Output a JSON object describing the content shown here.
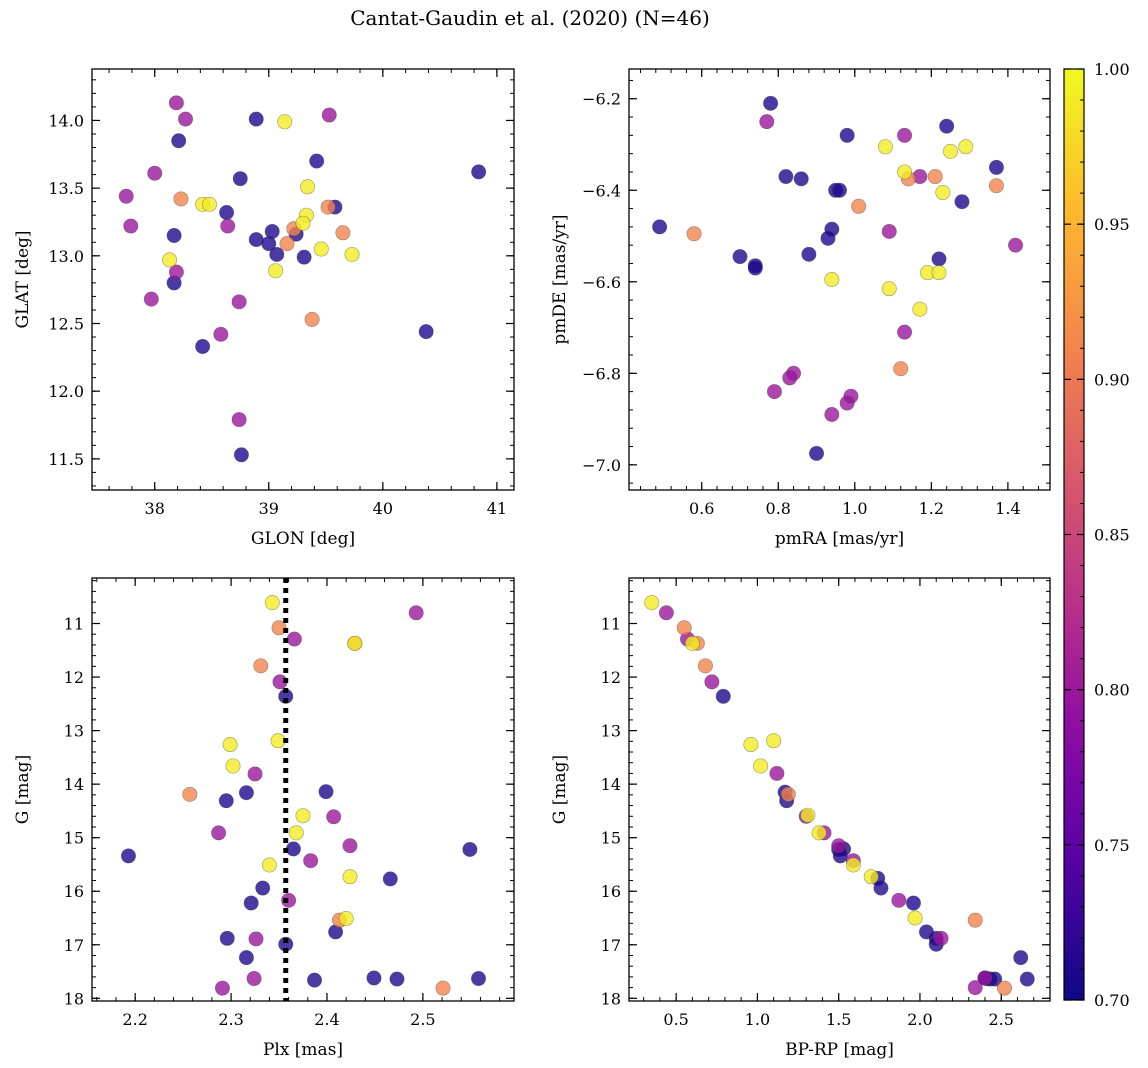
{
  "figure": {
    "title": "Cantat-Gaudin et al. (2020) (N=46)"
  },
  "colorbar": {
    "colormap": "plasma",
    "min": 0.7,
    "max": 1.0,
    "ticks": [
      0.7,
      0.75,
      0.8,
      0.85,
      0.9,
      0.95,
      1.0
    ],
    "tick_labels": [
      "0.70",
      "0.75",
      "0.80",
      "0.85",
      "0.90",
      "0.95",
      "1.00"
    ]
  },
  "chart_data": [
    {
      "id": "glon-glat",
      "type": "scatter",
      "title": "",
      "xlabel": "GLON [deg]",
      "ylabel": "GLAT [deg]",
      "xlim": [
        37.45,
        41.15
      ],
      "ylim": [
        11.27,
        14.38
      ],
      "yinverted": false,
      "xticks": [
        38,
        39,
        40,
        41
      ],
      "yticks": [
        11.5,
        12.0,
        12.5,
        13.0,
        13.5,
        14.0
      ],
      "xtick_labels": [
        "38",
        "39",
        "40",
        "41"
      ],
      "ytick_labels": [
        "11.5",
        "12.0",
        "12.5",
        "13.0",
        "13.5",
        "14.0"
      ],
      "points": [
        {
          "x": 38.89,
          "y": 14.01,
          "c": 0.71
        },
        {
          "x": 38.21,
          "y": 13.85,
          "c": 0.71
        },
        {
          "x": 39.42,
          "y": 13.7,
          "c": 0.71
        },
        {
          "x": 40.84,
          "y": 13.62,
          "c": 0.71
        },
        {
          "x": 38.75,
          "y": 13.57,
          "c": 0.71
        },
        {
          "x": 39.58,
          "y": 13.36,
          "c": 0.71
        },
        {
          "x": 38.63,
          "y": 13.32,
          "c": 0.71
        },
        {
          "x": 39.24,
          "y": 13.16,
          "c": 0.71
        },
        {
          "x": 39.03,
          "y": 13.18,
          "c": 0.71
        },
        {
          "x": 38.17,
          "y": 13.15,
          "c": 0.71
        },
        {
          "x": 38.89,
          "y": 13.12,
          "c": 0.71
        },
        {
          "x": 39.0,
          "y": 13.09,
          "c": 0.71
        },
        {
          "x": 39.07,
          "y": 13.01,
          "c": 0.71
        },
        {
          "x": 39.31,
          "y": 12.99,
          "c": 0.71
        },
        {
          "x": 38.17,
          "y": 12.8,
          "c": 0.71
        },
        {
          "x": 40.38,
          "y": 12.44,
          "c": 0.71
        },
        {
          "x": 38.42,
          "y": 12.33,
          "c": 0.71
        },
        {
          "x": 38.76,
          "y": 11.53,
          "c": 0.71
        },
        {
          "x": 38.19,
          "y": 14.13,
          "c": 0.8
        },
        {
          "x": 38.27,
          "y": 14.01,
          "c": 0.8
        },
        {
          "x": 39.53,
          "y": 14.04,
          "c": 0.8
        },
        {
          "x": 38.0,
          "y": 13.61,
          "c": 0.8
        },
        {
          "x": 37.75,
          "y": 13.44,
          "c": 0.8
        },
        {
          "x": 37.79,
          "y": 13.22,
          "c": 0.8
        },
        {
          "x": 38.64,
          "y": 13.22,
          "c": 0.8
        },
        {
          "x": 38.19,
          "y": 12.88,
          "c": 0.8
        },
        {
          "x": 37.97,
          "y": 12.68,
          "c": 0.8
        },
        {
          "x": 38.74,
          "y": 12.66,
          "c": 0.8
        },
        {
          "x": 38.58,
          "y": 12.42,
          "c": 0.8
        },
        {
          "x": 38.74,
          "y": 11.79,
          "c": 0.8
        },
        {
          "x": 38.23,
          "y": 13.42,
          "c": 0.91
        },
        {
          "x": 39.52,
          "y": 13.36,
          "c": 0.91
        },
        {
          "x": 39.22,
          "y": 13.2,
          "c": 0.91
        },
        {
          "x": 39.65,
          "y": 13.17,
          "c": 0.91
        },
        {
          "x": 39.16,
          "y": 13.09,
          "c": 0.91
        },
        {
          "x": 39.38,
          "y": 12.53,
          "c": 0.91
        },
        {
          "x": 39.14,
          "y": 13.99,
          "c": 0.99
        },
        {
          "x": 39.34,
          "y": 13.51,
          "c": 0.99
        },
        {
          "x": 38.42,
          "y": 13.38,
          "c": 0.99
        },
        {
          "x": 38.48,
          "y": 13.38,
          "c": 0.99
        },
        {
          "x": 39.33,
          "y": 13.3,
          "c": 0.99
        },
        {
          "x": 39.3,
          "y": 13.24,
          "c": 0.99
        },
        {
          "x": 39.46,
          "y": 13.05,
          "c": 0.99
        },
        {
          "x": 39.73,
          "y": 13.01,
          "c": 0.99
        },
        {
          "x": 38.13,
          "y": 12.97,
          "c": 0.99
        },
        {
          "x": 39.06,
          "y": 12.89,
          "c": 0.99
        }
      ]
    },
    {
      "id": "pmra-pmde",
      "type": "scatter",
      "title": "",
      "xlabel": "pmRA [mas/yr]",
      "ylabel": "pmDE [mas/yr]",
      "xlim": [
        0.41,
        1.51
      ],
      "ylim": [
        -7.055,
        -6.135
      ],
      "yinverted": false,
      "xticks": [
        0.6,
        0.8,
        1.0,
        1.2,
        1.4
      ],
      "yticks": [
        -7.0,
        -6.8,
        -6.6,
        -6.4,
        -6.2
      ],
      "xtick_labels": [
        "0.6",
        "0.8",
        "1.0",
        "1.2",
        "1.4"
      ],
      "ytick_labels": [
        "−7.0",
        "−6.8",
        "−6.6",
        "−6.4",
        "−6.2"
      ],
      "points": [
        {
          "x": 0.78,
          "y": -6.21,
          "c": 0.71
        },
        {
          "x": 1.24,
          "y": -6.26,
          "c": 0.71
        },
        {
          "x": 0.98,
          "y": -6.28,
          "c": 0.71
        },
        {
          "x": 1.37,
          "y": -6.35,
          "c": 0.71
        },
        {
          "x": 0.82,
          "y": -6.37,
          "c": 0.71
        },
        {
          "x": 0.86,
          "y": -6.375,
          "c": 0.71
        },
        {
          "x": 0.95,
          "y": -6.4,
          "c": 0.71
        },
        {
          "x": 0.96,
          "y": -6.4,
          "c": 0.71
        },
        {
          "x": 1.28,
          "y": -6.425,
          "c": 0.71
        },
        {
          "x": 0.49,
          "y": -6.48,
          "c": 0.71
        },
        {
          "x": 0.94,
          "y": -6.485,
          "c": 0.71
        },
        {
          "x": 0.93,
          "y": -6.505,
          "c": 0.71
        },
        {
          "x": 0.88,
          "y": -6.54,
          "c": 0.71
        },
        {
          "x": 0.7,
          "y": -6.545,
          "c": 0.71
        },
        {
          "x": 1.22,
          "y": -6.55,
          "c": 0.71
        },
        {
          "x": 0.74,
          "y": -6.565,
          "c": 0.71
        },
        {
          "x": 0.74,
          "y": -6.57,
          "c": 0.71
        },
        {
          "x": 0.9,
          "y": -6.975,
          "c": 0.71
        },
        {
          "x": 0.77,
          "y": -6.25,
          "c": 0.8
        },
        {
          "x": 1.13,
          "y": -6.28,
          "c": 0.8
        },
        {
          "x": 1.17,
          "y": -6.37,
          "c": 0.8
        },
        {
          "x": 1.42,
          "y": -6.52,
          "c": 0.8
        },
        {
          "x": 1.09,
          "y": -6.49,
          "c": 0.8
        },
        {
          "x": 1.13,
          "y": -6.71,
          "c": 0.8
        },
        {
          "x": 0.84,
          "y": -6.8,
          "c": 0.8
        },
        {
          "x": 0.83,
          "y": -6.81,
          "c": 0.8
        },
        {
          "x": 0.79,
          "y": -6.84,
          "c": 0.8
        },
        {
          "x": 0.99,
          "y": -6.85,
          "c": 0.8
        },
        {
          "x": 0.98,
          "y": -6.865,
          "c": 0.8
        },
        {
          "x": 0.94,
          "y": -6.89,
          "c": 0.8
        },
        {
          "x": 1.21,
          "y": -6.37,
          "c": 0.91
        },
        {
          "x": 1.14,
          "y": -6.375,
          "c": 0.91
        },
        {
          "x": 1.37,
          "y": -6.39,
          "c": 0.91
        },
        {
          "x": 1.01,
          "y": -6.435,
          "c": 0.91
        },
        {
          "x": 0.58,
          "y": -6.495,
          "c": 0.91
        },
        {
          "x": 1.12,
          "y": -6.79,
          "c": 0.91
        },
        {
          "x": 1.08,
          "y": -6.305,
          "c": 0.99
        },
        {
          "x": 1.29,
          "y": -6.305,
          "c": 0.99
        },
        {
          "x": 1.25,
          "y": -6.315,
          "c": 0.99
        },
        {
          "x": 1.13,
          "y": -6.36,
          "c": 0.99
        },
        {
          "x": 1.23,
          "y": -6.405,
          "c": 0.99
        },
        {
          "x": 1.19,
          "y": -6.58,
          "c": 0.99
        },
        {
          "x": 1.22,
          "y": -6.58,
          "c": 0.99
        },
        {
          "x": 0.94,
          "y": -6.595,
          "c": 0.99
        },
        {
          "x": 1.09,
          "y": -6.615,
          "c": 0.99
        },
        {
          "x": 1.17,
          "y": -6.66,
          "c": 0.99
        }
      ]
    },
    {
      "id": "plx-g",
      "type": "scatter",
      "title": "",
      "xlabel": "Plx [mas]",
      "ylabel": "G [mag]",
      "xlim": [
        2.155,
        2.595
      ],
      "ylim": [
        10.15,
        18.05
      ],
      "yinverted": true,
      "xticks": [
        2.2,
        2.3,
        2.4,
        2.5
      ],
      "yticks": [
        11,
        12,
        13,
        14,
        15,
        16,
        17,
        18
      ],
      "xtick_labels": [
        "2.2",
        "2.3",
        "2.4",
        "2.5"
      ],
      "ytick_labels": [
        "11",
        "12",
        "13",
        "14",
        "15",
        "16",
        "17",
        "18"
      ],
      "vline": {
        "x": 2.357,
        "style": "dotted"
      },
      "points": [
        {
          "x": 2.357,
          "y": 12.36,
          "c": 0.71
        },
        {
          "x": 2.316,
          "y": 14.16,
          "c": 0.71
        },
        {
          "x": 2.399,
          "y": 14.14,
          "c": 0.71
        },
        {
          "x": 2.295,
          "y": 14.31,
          "c": 0.71
        },
        {
          "x": 2.365,
          "y": 15.21,
          "c": 0.71
        },
        {
          "x": 2.549,
          "y": 15.22,
          "c": 0.71
        },
        {
          "x": 2.193,
          "y": 15.34,
          "c": 0.71
        },
        {
          "x": 2.466,
          "y": 15.77,
          "c": 0.71
        },
        {
          "x": 2.333,
          "y": 15.94,
          "c": 0.71
        },
        {
          "x": 2.321,
          "y": 16.22,
          "c": 0.71
        },
        {
          "x": 2.409,
          "y": 16.76,
          "c": 0.71
        },
        {
          "x": 2.296,
          "y": 16.88,
          "c": 0.71
        },
        {
          "x": 2.357,
          "y": 16.99,
          "c": 0.71
        },
        {
          "x": 2.316,
          "y": 17.24,
          "c": 0.71
        },
        {
          "x": 2.449,
          "y": 17.62,
          "c": 0.71
        },
        {
          "x": 2.473,
          "y": 17.64,
          "c": 0.71
        },
        {
          "x": 2.387,
          "y": 17.66,
          "c": 0.71
        },
        {
          "x": 2.558,
          "y": 17.63,
          "c": 0.71
        },
        {
          "x": 2.493,
          "y": 10.8,
          "c": 0.8
        },
        {
          "x": 2.366,
          "y": 11.29,
          "c": 0.8
        },
        {
          "x": 2.351,
          "y": 12.09,
          "c": 0.8
        },
        {
          "x": 2.325,
          "y": 13.81,
          "c": 0.8
        },
        {
          "x": 2.407,
          "y": 14.61,
          "c": 0.8
        },
        {
          "x": 2.287,
          "y": 14.91,
          "c": 0.8
        },
        {
          "x": 2.424,
          "y": 15.15,
          "c": 0.8
        },
        {
          "x": 2.383,
          "y": 15.43,
          "c": 0.8
        },
        {
          "x": 2.36,
          "y": 16.17,
          "c": 0.8
        },
        {
          "x": 2.326,
          "y": 16.89,
          "c": 0.8
        },
        {
          "x": 2.324,
          "y": 17.63,
          "c": 0.8
        },
        {
          "x": 2.291,
          "y": 17.81,
          "c": 0.8
        },
        {
          "x": 2.35,
          "y": 11.08,
          "c": 0.91
        },
        {
          "x": 2.429,
          "y": 11.37,
          "c": 0.91
        },
        {
          "x": 2.331,
          "y": 11.79,
          "c": 0.91
        },
        {
          "x": 2.257,
          "y": 14.19,
          "c": 0.91
        },
        {
          "x": 2.413,
          "y": 16.54,
          "c": 0.91
        },
        {
          "x": 2.521,
          "y": 17.81,
          "c": 0.91
        },
        {
          "x": 2.343,
          "y": 10.61,
          "c": 0.99
        },
        {
          "x": 2.429,
          "y": 11.37,
          "c": 0.99
        },
        {
          "x": 2.349,
          "y": 13.19,
          "c": 0.99
        },
        {
          "x": 2.299,
          "y": 13.26,
          "c": 0.99
        },
        {
          "x": 2.302,
          "y": 13.66,
          "c": 0.99
        },
        {
          "x": 2.375,
          "y": 14.59,
          "c": 0.99
        },
        {
          "x": 2.368,
          "y": 14.91,
          "c": 0.99
        },
        {
          "x": 2.34,
          "y": 15.51,
          "c": 0.99
        },
        {
          "x": 2.424,
          "y": 15.73,
          "c": 0.99
        },
        {
          "x": 2.42,
          "y": 16.51,
          "c": 0.99
        }
      ]
    },
    {
      "id": "bprp-g",
      "type": "scatter",
      "title": "",
      "xlabel": "BP-RP [mag]",
      "ylabel": "G [mag]",
      "xlim": [
        0.21,
        2.8
      ],
      "ylim": [
        10.15,
        18.05
      ],
      "yinverted": true,
      "xticks": [
        0.5,
        1.0,
        1.5,
        2.0,
        2.5
      ],
      "yticks": [
        11,
        12,
        13,
        14,
        15,
        16,
        17,
        18
      ],
      "xtick_labels": [
        "0.5",
        "1.0",
        "1.5",
        "2.0",
        "2.5"
      ],
      "ytick_labels": [
        "11",
        "12",
        "13",
        "14",
        "15",
        "16",
        "17",
        "18"
      ],
      "points": [
        {
          "x": 0.79,
          "y": 12.36,
          "c": 0.71
        },
        {
          "x": 1.17,
          "y": 14.15,
          "c": 0.71
        },
        {
          "x": 1.18,
          "y": 14.31,
          "c": 0.71
        },
        {
          "x": 1.53,
          "y": 15.21,
          "c": 0.71
        },
        {
          "x": 1.5,
          "y": 15.22,
          "c": 0.71
        },
        {
          "x": 1.51,
          "y": 15.34,
          "c": 0.71
        },
        {
          "x": 1.74,
          "y": 15.76,
          "c": 0.71
        },
        {
          "x": 1.76,
          "y": 15.94,
          "c": 0.71
        },
        {
          "x": 1.96,
          "y": 16.22,
          "c": 0.71
        },
        {
          "x": 2.04,
          "y": 16.76,
          "c": 0.71
        },
        {
          "x": 2.1,
          "y": 16.88,
          "c": 0.71
        },
        {
          "x": 2.1,
          "y": 16.99,
          "c": 0.71
        },
        {
          "x": 2.62,
          "y": 17.24,
          "c": 0.71
        },
        {
          "x": 2.4,
          "y": 17.62,
          "c": 0.71
        },
        {
          "x": 2.43,
          "y": 17.64,
          "c": 0.71
        },
        {
          "x": 2.46,
          "y": 17.64,
          "c": 0.71
        },
        {
          "x": 2.66,
          "y": 17.64,
          "c": 0.71
        },
        {
          "x": 2.41,
          "y": 17.63,
          "c": 0.71
        },
        {
          "x": 0.44,
          "y": 10.8,
          "c": 0.8
        },
        {
          "x": 0.57,
          "y": 11.29,
          "c": 0.8
        },
        {
          "x": 0.72,
          "y": 12.09,
          "c": 0.8
        },
        {
          "x": 1.12,
          "y": 13.8,
          "c": 0.8
        },
        {
          "x": 1.3,
          "y": 14.6,
          "c": 0.8
        },
        {
          "x": 1.41,
          "y": 14.91,
          "c": 0.8
        },
        {
          "x": 1.5,
          "y": 15.15,
          "c": 0.8
        },
        {
          "x": 1.59,
          "y": 15.43,
          "c": 0.8
        },
        {
          "x": 1.87,
          "y": 16.17,
          "c": 0.8
        },
        {
          "x": 2.13,
          "y": 16.88,
          "c": 0.8
        },
        {
          "x": 2.4,
          "y": 17.62,
          "c": 0.8
        },
        {
          "x": 2.34,
          "y": 17.8,
          "c": 0.8
        },
        {
          "x": 0.55,
          "y": 11.08,
          "c": 0.91
        },
        {
          "x": 0.63,
          "y": 11.37,
          "c": 0.91
        },
        {
          "x": 0.68,
          "y": 11.79,
          "c": 0.91
        },
        {
          "x": 1.19,
          "y": 14.19,
          "c": 0.91
        },
        {
          "x": 2.34,
          "y": 16.54,
          "c": 0.91
        },
        {
          "x": 2.52,
          "y": 17.81,
          "c": 0.91
        },
        {
          "x": 0.35,
          "y": 10.61,
          "c": 0.99
        },
        {
          "x": 0.6,
          "y": 11.37,
          "c": 0.99
        },
        {
          "x": 1.1,
          "y": 13.19,
          "c": 0.99
        },
        {
          "x": 0.96,
          "y": 13.26,
          "c": 0.99
        },
        {
          "x": 1.02,
          "y": 13.66,
          "c": 0.99
        },
        {
          "x": 1.31,
          "y": 14.58,
          "c": 0.99
        },
        {
          "x": 1.38,
          "y": 14.91,
          "c": 0.99
        },
        {
          "x": 1.59,
          "y": 15.51,
          "c": 0.99
        },
        {
          "x": 1.7,
          "y": 15.73,
          "c": 0.99
        },
        {
          "x": 1.97,
          "y": 16.5,
          "c": 0.99
        }
      ]
    }
  ]
}
